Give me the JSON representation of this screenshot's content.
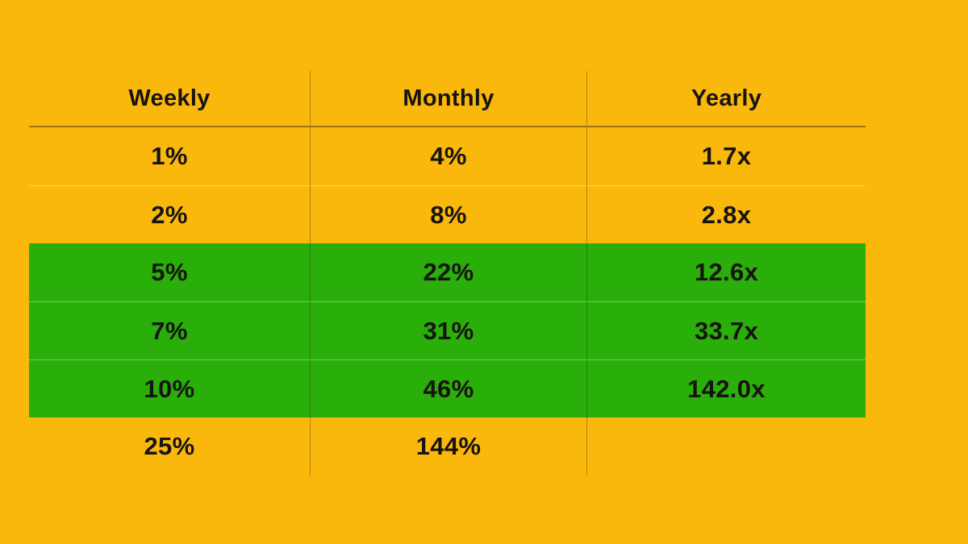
{
  "colors": {
    "background": "#F9B80B",
    "highlight": "#29AE0A",
    "text": "#171310"
  },
  "chart_data": {
    "type": "table",
    "title": "",
    "columns": [
      "Weekly",
      "Monthly",
      "Yearly"
    ],
    "rows": [
      [
        "1%",
        "4%",
        "1.7x"
      ],
      [
        "2%",
        "8%",
        "2.8x"
      ],
      [
        "5%",
        "22%",
        "12.6x"
      ],
      [
        "7%",
        "31%",
        "33.7x"
      ],
      [
        "10%",
        "46%",
        "142.0x"
      ],
      [
        "25%",
        "144%",
        ""
      ]
    ],
    "highlighted_rows": [
      2,
      3,
      4
    ],
    "layout_hints": {
      "grid": "thin column dividers, faint light row separators",
      "header_rule": "dark underline below header row",
      "background": "solid golden yellow, green highlight band on rows 3-5"
    }
  }
}
